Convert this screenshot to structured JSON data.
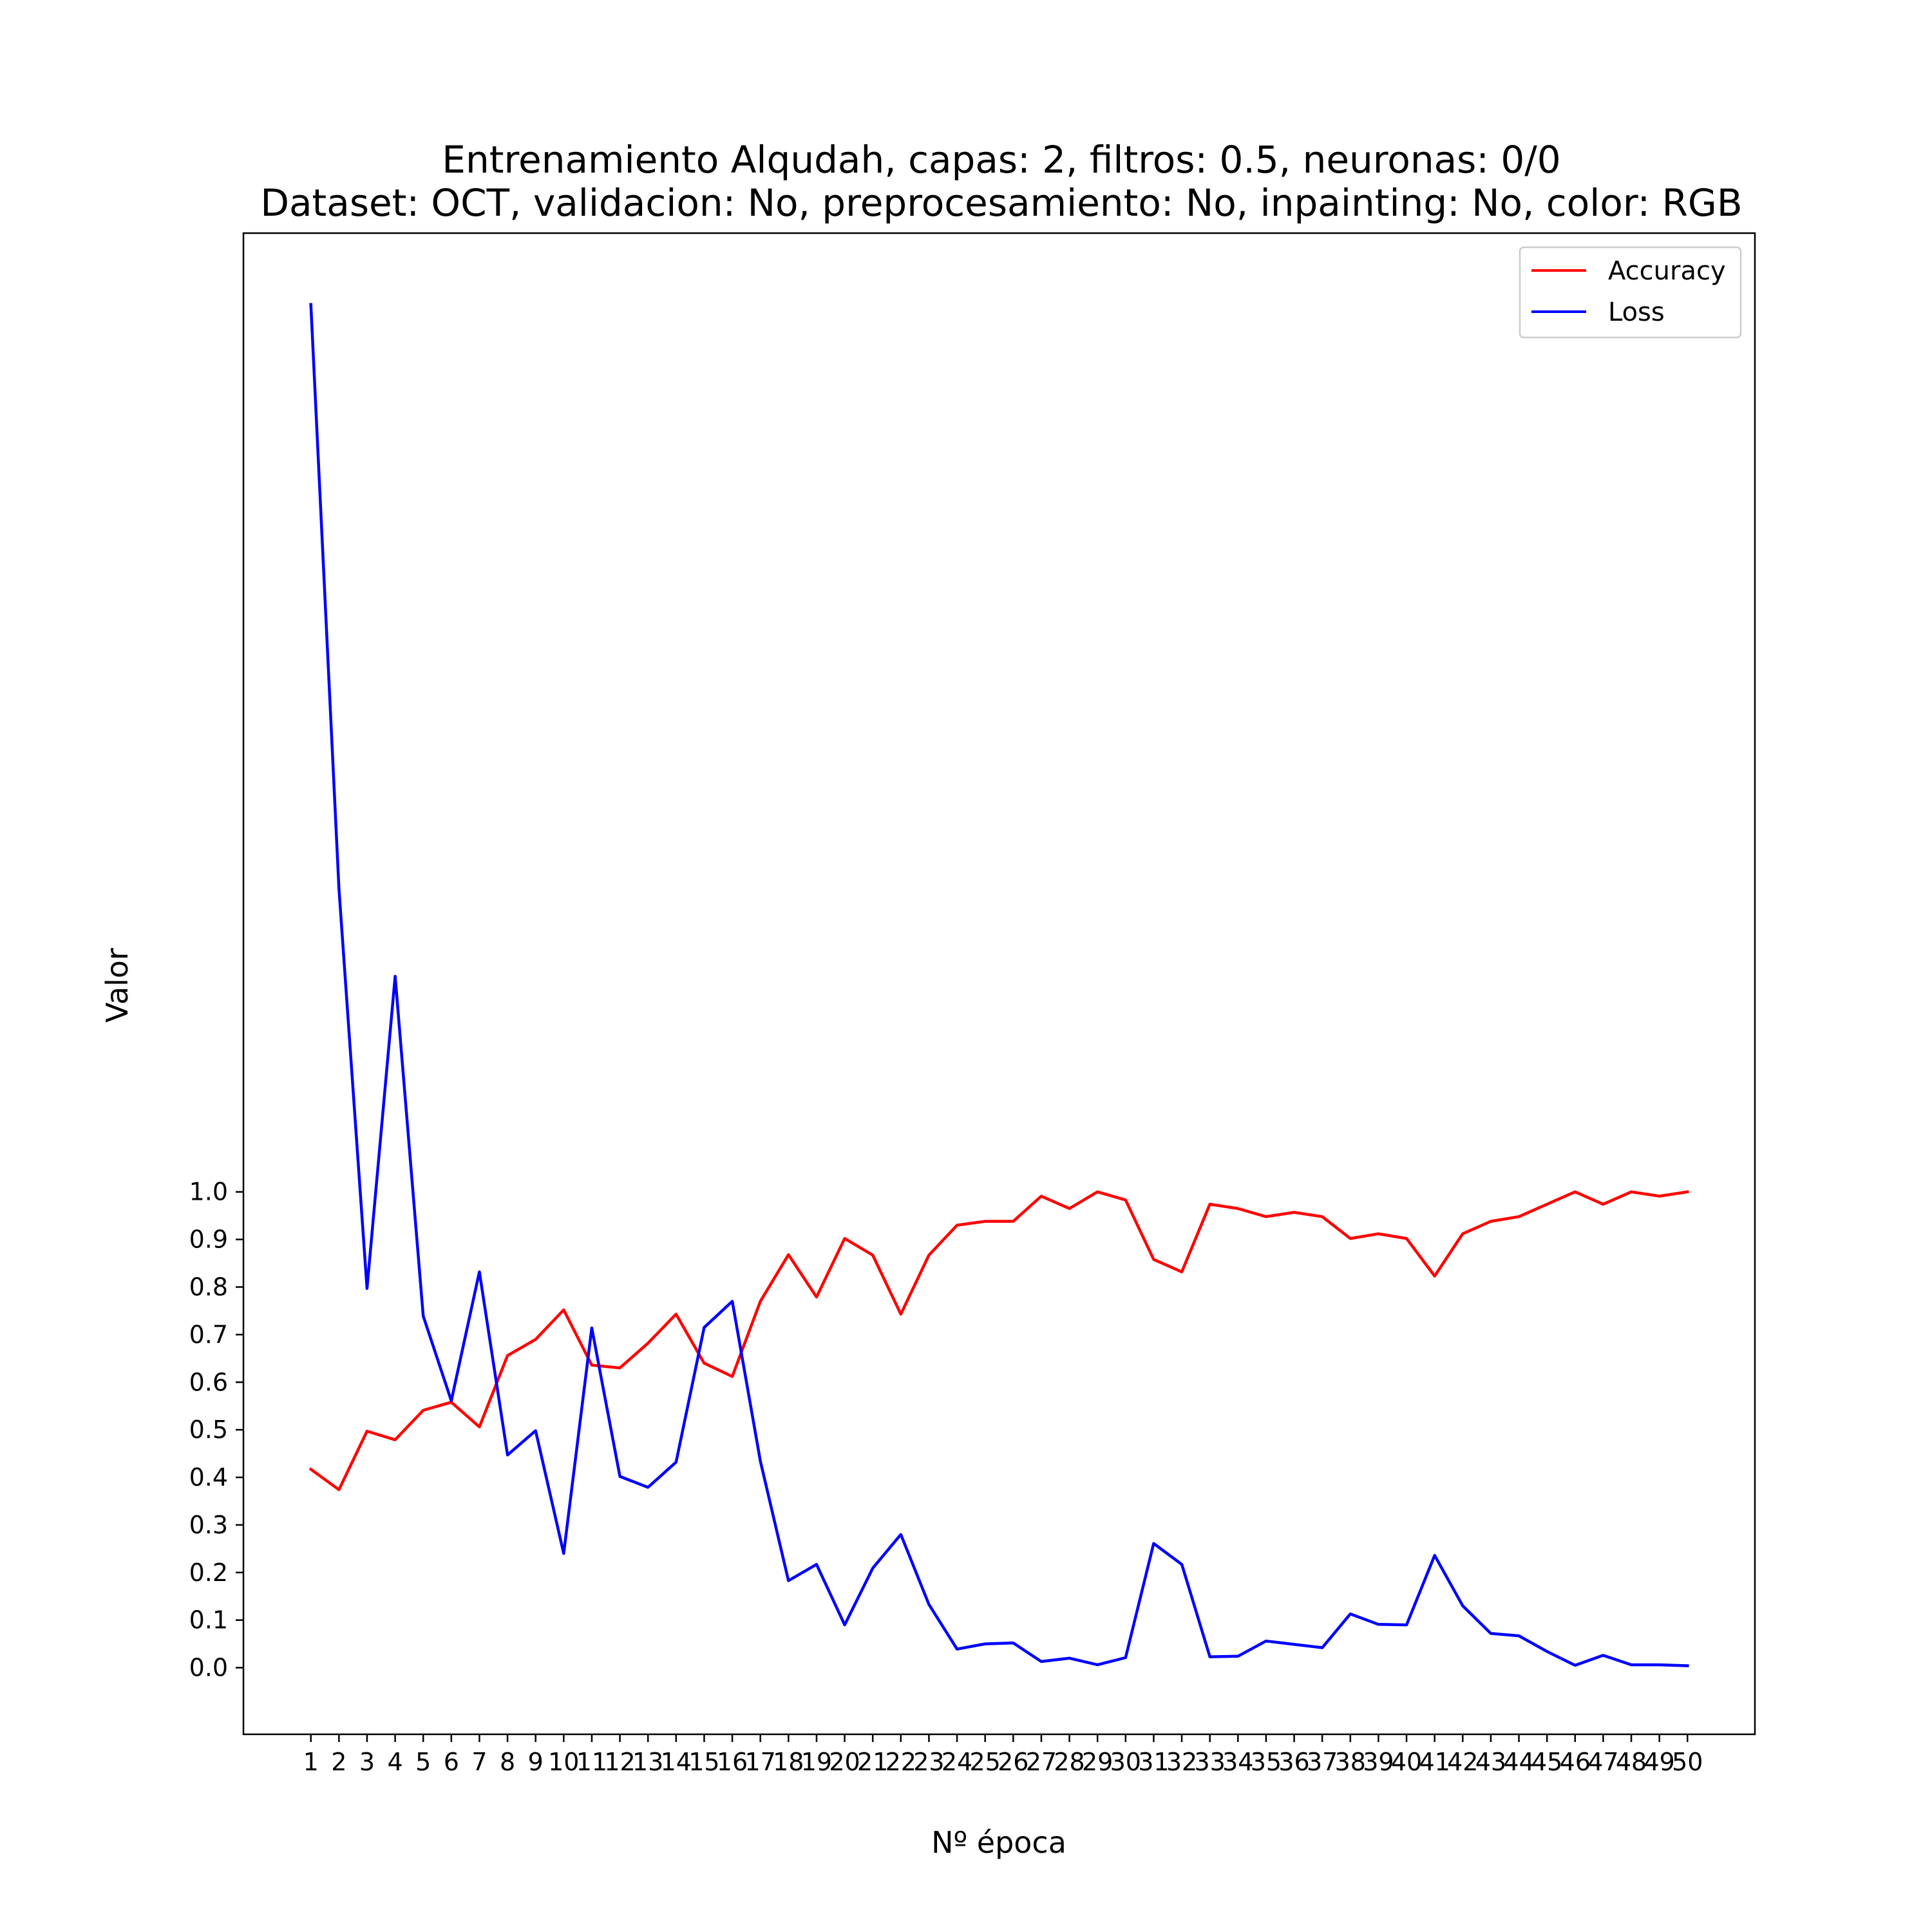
{
  "chart_data": {
    "type": "line",
    "title": "Entrenamiento Alqudah, capas: 2, filtros: 0.5, neuronas: 0/0",
    "subtitle": "Dataset: OCT, validacion: No, preprocesamiento: No, inpainting: No, color: RGB",
    "xlabel": "Nº época",
    "ylabel": "Valor",
    "x": [
      1,
      2,
      3,
      4,
      5,
      6,
      7,
      8,
      9,
      10,
      11,
      12,
      13,
      14,
      15,
      16,
      17,
      18,
      19,
      20,
      21,
      22,
      23,
      24,
      25,
      26,
      27,
      28,
      29,
      30,
      31,
      32,
      33,
      34,
      35,
      36,
      37,
      38,
      39,
      40,
      41,
      42,
      43,
      44,
      45,
      46,
      47,
      48,
      49,
      50
    ],
    "x_tick_labels": [
      "1",
      "2",
      "3",
      "4",
      "5",
      "6",
      "7",
      "8",
      "9",
      "10",
      "11",
      "12",
      "13",
      "14",
      "15",
      "16",
      "17",
      "18",
      "19",
      "20",
      "21",
      "22",
      "23",
      "24",
      "25",
      "26",
      "27",
      "28",
      "29",
      "30",
      "31",
      "32",
      "33",
      "34",
      "35",
      "36",
      "37",
      "38",
      "39",
      "40",
      "41",
      "42",
      "43",
      "44",
      "45",
      "46",
      "47",
      "48",
      "49",
      "50"
    ],
    "y_ticks": [
      0.0,
      0.1,
      0.2,
      0.3,
      0.4,
      0.5,
      0.6,
      0.7,
      0.8,
      0.9,
      1.0
    ],
    "y_tick_labels": [
      "0.0",
      "0.1",
      "0.2",
      "0.3",
      "0.4",
      "0.5",
      "0.6",
      "0.7",
      "0.8",
      "0.9",
      "1.0"
    ],
    "xlim": [
      -1.4,
      52.4
    ],
    "ylim": [
      -0.14,
      3.015
    ],
    "grid": false,
    "legend_position": "top-right",
    "series": [
      {
        "name": "Accuracy",
        "color": "#ff0000",
        "values": [
          0.417,
          0.374,
          0.497,
          0.479,
          0.541,
          0.558,
          0.506,
          0.656,
          0.69,
          0.752,
          0.636,
          0.63,
          0.682,
          0.743,
          0.64,
          0.612,
          0.77,
          0.868,
          0.779,
          0.902,
          0.867,
          0.743,
          0.867,
          0.93,
          0.938,
          0.938,
          0.991,
          0.965,
          1.0,
          0.983,
          0.858,
          0.832,
          0.974,
          0.965,
          0.948,
          0.957,
          0.948,
          0.902,
          0.912,
          0.902,
          0.823,
          0.912,
          0.938,
          0.948,
          0.974,
          1.0,
          0.974,
          1.0,
          0.991,
          1.0
        ]
      },
      {
        "name": "Loss",
        "color": "#0000ff",
        "values": [
          2.865,
          1.638,
          0.797,
          1.453,
          0.739,
          0.561,
          0.832,
          0.447,
          0.498,
          0.24,
          0.714,
          0.402,
          0.379,
          0.432,
          0.715,
          0.77,
          0.434,
          0.183,
          0.217,
          0.09,
          0.209,
          0.28,
          0.133,
          0.039,
          0.05,
          0.052,
          0.013,
          0.02,
          0.006,
          0.021,
          0.261,
          0.217,
          0.023,
          0.024,
          0.056,
          0.049,
          0.042,
          0.113,
          0.091,
          0.09,
          0.236,
          0.13,
          0.072,
          0.067,
          0.034,
          0.005,
          0.026,
          0.006,
          0.006,
          0.004
        ]
      }
    ]
  }
}
